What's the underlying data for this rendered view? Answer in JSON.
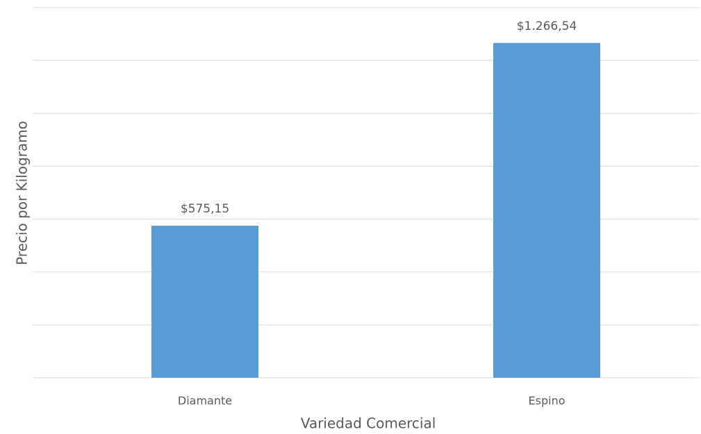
{
  "chart_data": {
    "type": "bar",
    "categories": [
      "Diamante",
      "Espino"
    ],
    "values": [
      575.15,
      1266.54
    ],
    "value_labels": [
      "$575,15",
      "$1.266,54"
    ],
    "color": "#5b9bd5",
    "xlabel": "Variedad Comercial",
    "ylabel": "Precio por Kilogramo",
    "ylim": [
      0,
      1400
    ],
    "yticks": [
      0,
      200,
      400,
      600,
      800,
      1000,
      1200,
      1400
    ],
    "grid": true
  }
}
